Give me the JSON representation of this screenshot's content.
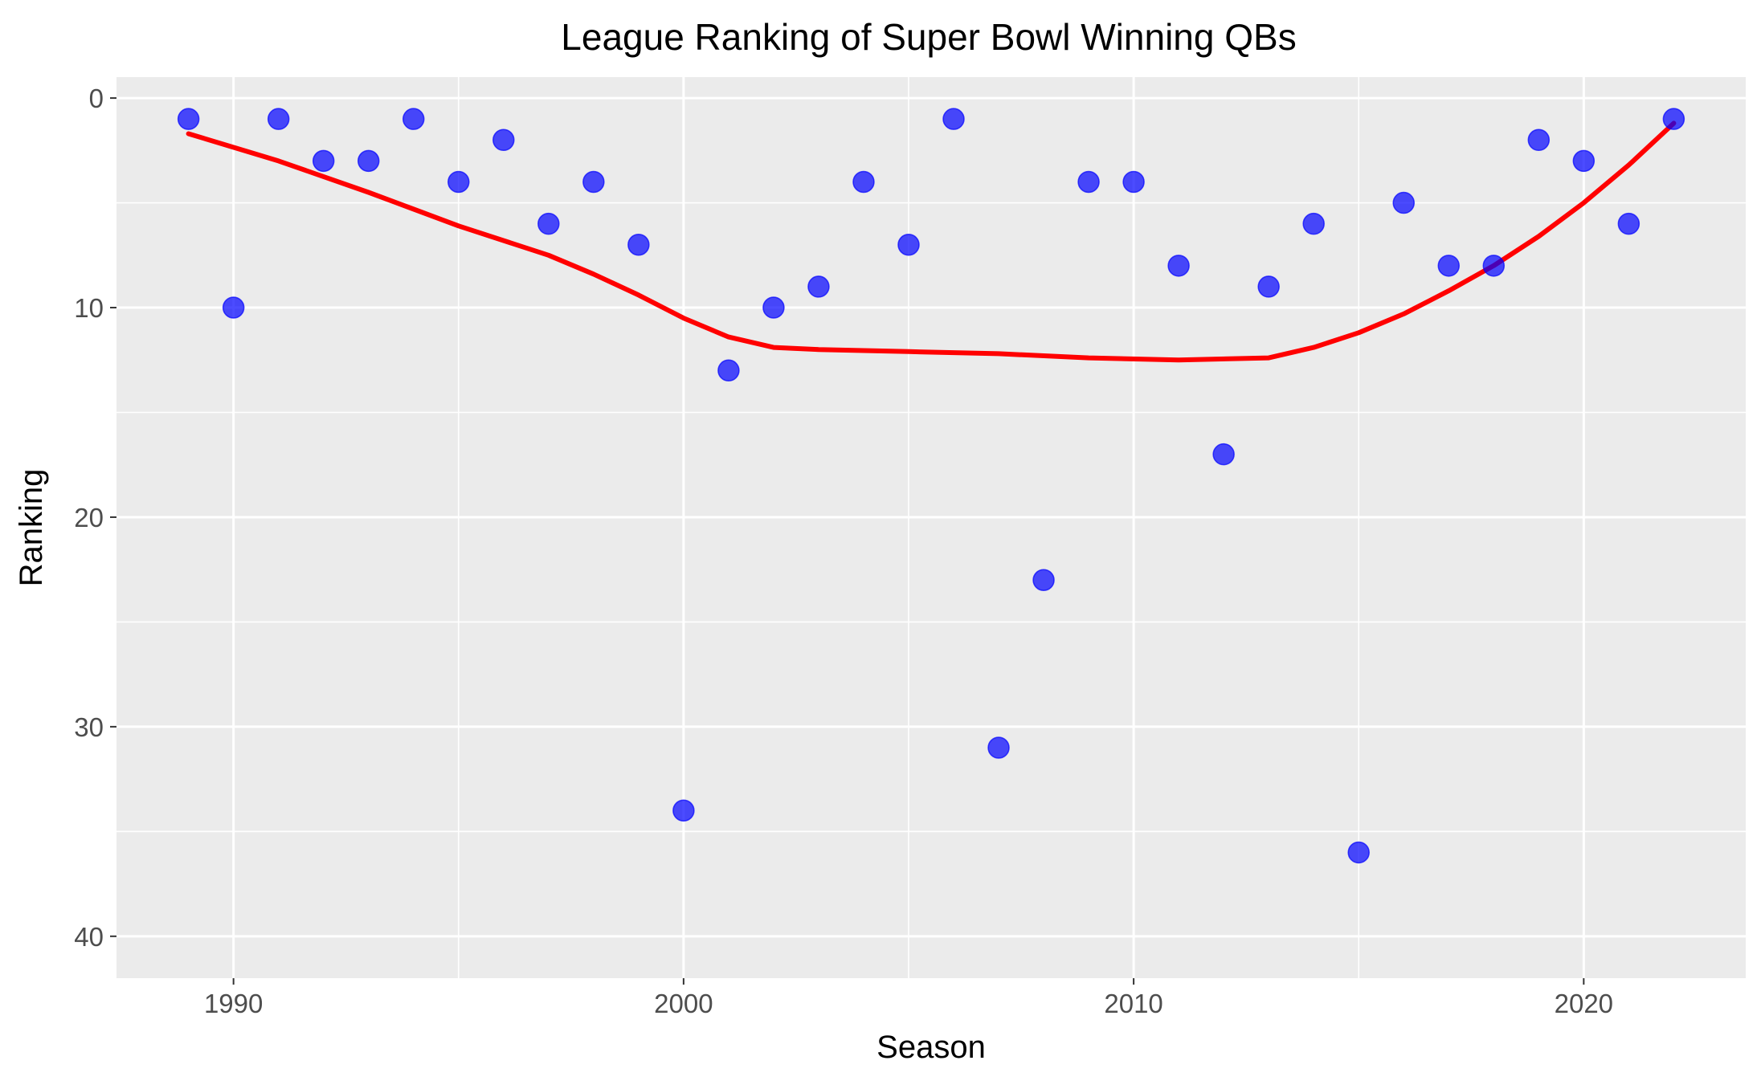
{
  "chart_data": {
    "type": "scatter",
    "title": "League Ranking of Super Bowl Winning QBs",
    "xlabel": "Season",
    "ylabel": "Ranking",
    "xlim": [
      1987.4,
      2023.6
    ],
    "ylim": [
      42,
      -1
    ],
    "y_reversed": true,
    "x_ticks": [
      1990,
      2000,
      2010,
      2020
    ],
    "y_ticks": [
      0,
      10,
      20,
      30,
      40
    ],
    "grid": true,
    "legend": "none",
    "colors": {
      "panel": "#ebebeb",
      "grid": "#ffffff",
      "points": "#0000ff",
      "smooth": "#ff0000"
    },
    "points": [
      {
        "x": 1989,
        "y": 1
      },
      {
        "x": 1990,
        "y": 10
      },
      {
        "x": 1991,
        "y": 1
      },
      {
        "x": 1992,
        "y": 3
      },
      {
        "x": 1993,
        "y": 3
      },
      {
        "x": 1994,
        "y": 1
      },
      {
        "x": 1995,
        "y": 4
      },
      {
        "x": 1996,
        "y": 2
      },
      {
        "x": 1997,
        "y": 6
      },
      {
        "x": 1998,
        "y": 4
      },
      {
        "x": 1999,
        "y": 7
      },
      {
        "x": 2000,
        "y": 34
      },
      {
        "x": 2001,
        "y": 13
      },
      {
        "x": 2002,
        "y": 10
      },
      {
        "x": 2003,
        "y": 9
      },
      {
        "x": 2004,
        "y": 4
      },
      {
        "x": 2005,
        "y": 7
      },
      {
        "x": 2006,
        "y": 1
      },
      {
        "x": 2007,
        "y": 31
      },
      {
        "x": 2008,
        "y": 23
      },
      {
        "x": 2009,
        "y": 4
      },
      {
        "x": 2010,
        "y": 4
      },
      {
        "x": 2011,
        "y": 8
      },
      {
        "x": 2012,
        "y": 17
      },
      {
        "x": 2013,
        "y": 9
      },
      {
        "x": 2014,
        "y": 6
      },
      {
        "x": 2015,
        "y": 36
      },
      {
        "x": 2016,
        "y": 5
      },
      {
        "x": 2017,
        "y": 8
      },
      {
        "x": 2018,
        "y": 8
      },
      {
        "x": 2019,
        "y": 2
      },
      {
        "x": 2020,
        "y": 3
      },
      {
        "x": 2021,
        "y": 6
      },
      {
        "x": 2022,
        "y": 1
      }
    ],
    "smooth_line": [
      {
        "x": 1989,
        "y": 1.7
      },
      {
        "x": 1991,
        "y": 3.0
      },
      {
        "x": 1993,
        "y": 4.5
      },
      {
        "x": 1995,
        "y": 6.1
      },
      {
        "x": 1997,
        "y": 7.5
      },
      {
        "x": 1998,
        "y": 8.4
      },
      {
        "x": 1999,
        "y": 9.4
      },
      {
        "x": 2000,
        "y": 10.5
      },
      {
        "x": 2001,
        "y": 11.4
      },
      {
        "x": 2002,
        "y": 11.9
      },
      {
        "x": 2003,
        "y": 12.0
      },
      {
        "x": 2005,
        "y": 12.1
      },
      {
        "x": 2007,
        "y": 12.2
      },
      {
        "x": 2009,
        "y": 12.4
      },
      {
        "x": 2011,
        "y": 12.5
      },
      {
        "x": 2013,
        "y": 12.4
      },
      {
        "x": 2014,
        "y": 11.9
      },
      {
        "x": 2015,
        "y": 11.2
      },
      {
        "x": 2016,
        "y": 10.3
      },
      {
        "x": 2017,
        "y": 9.2
      },
      {
        "x": 2018,
        "y": 8.0
      },
      {
        "x": 2019,
        "y": 6.6
      },
      {
        "x": 2020,
        "y": 5.0
      },
      {
        "x": 2021,
        "y": 3.2
      },
      {
        "x": 2022,
        "y": 1.2
      }
    ]
  }
}
